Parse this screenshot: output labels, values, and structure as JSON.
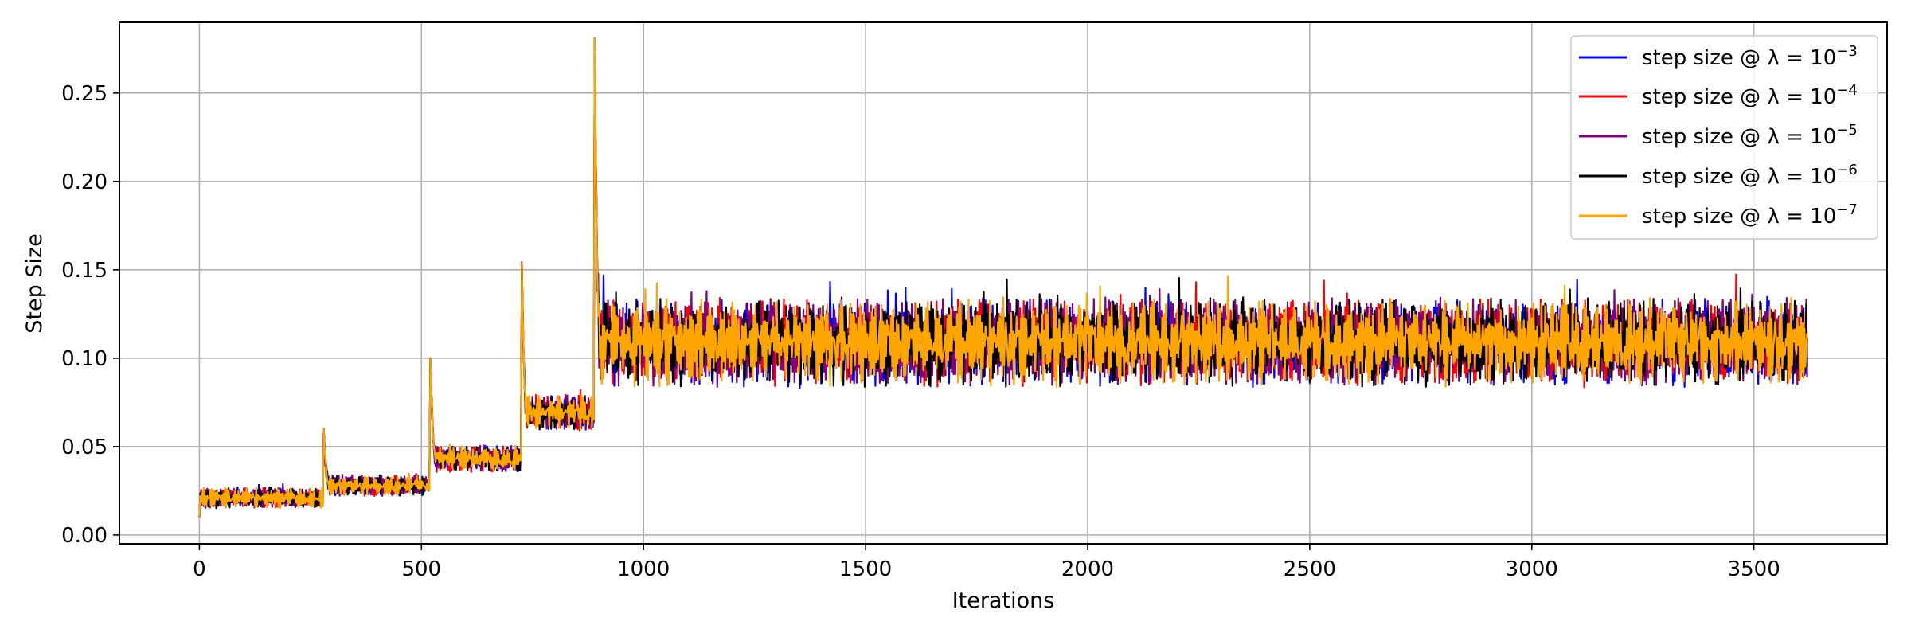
{
  "chart_data": {
    "type": "line",
    "title": "",
    "xlabel": "Iterations",
    "ylabel": "Step Size",
    "xlim": [
      -180,
      3800
    ],
    "ylim": [
      -0.005,
      0.29
    ],
    "x_ticks": [
      0,
      500,
      1000,
      1500,
      2000,
      2500,
      3000,
      3500
    ],
    "y_ticks": [
      0.0,
      0.05,
      0.1,
      0.15,
      0.2,
      0.25
    ],
    "x_tick_labels": [
      "0",
      "500",
      "1000",
      "1500",
      "2000",
      "2500",
      "3000",
      "3500"
    ],
    "y_tick_labels": [
      "0.00",
      "0.05",
      "0.10",
      "0.15",
      "0.20",
      "0.25"
    ],
    "grid": true,
    "legend_position": "top-right",
    "x_max_iteration": 3620,
    "phases": [
      {
        "start": 0,
        "end": 280,
        "level": 0.021,
        "amplitude": 0.004,
        "spike": null
      },
      {
        "start": 280,
        "end": 520,
        "level": 0.028,
        "amplitude": 0.004,
        "spike": 0.06
      },
      {
        "start": 520,
        "end": 725,
        "level": 0.043,
        "amplitude": 0.005,
        "spike": 0.1
      },
      {
        "start": 725,
        "end": 890,
        "level": 0.069,
        "amplitude": 0.007,
        "spike": 0.17
      },
      {
        "start": 890,
        "end": 3620,
        "level": 0.109,
        "amplitude": 0.017,
        "spike": 0.281
      }
    ],
    "initial_value": 0.01,
    "series": [
      {
        "name": "step size @ λ = 10",
        "exponent": "−3",
        "color": "#0000ff"
      },
      {
        "name": "step size @ λ = 10",
        "exponent": "−4",
        "color": "#ff0000"
      },
      {
        "name": "step size @ λ = 10",
        "exponent": "−5",
        "color": "#800080"
      },
      {
        "name": "step size @ λ = 10",
        "exponent": "−6",
        "color": "#000000"
      },
      {
        "name": "step size @ λ = 10",
        "exponent": "−7",
        "color": "#ffa500"
      }
    ]
  }
}
